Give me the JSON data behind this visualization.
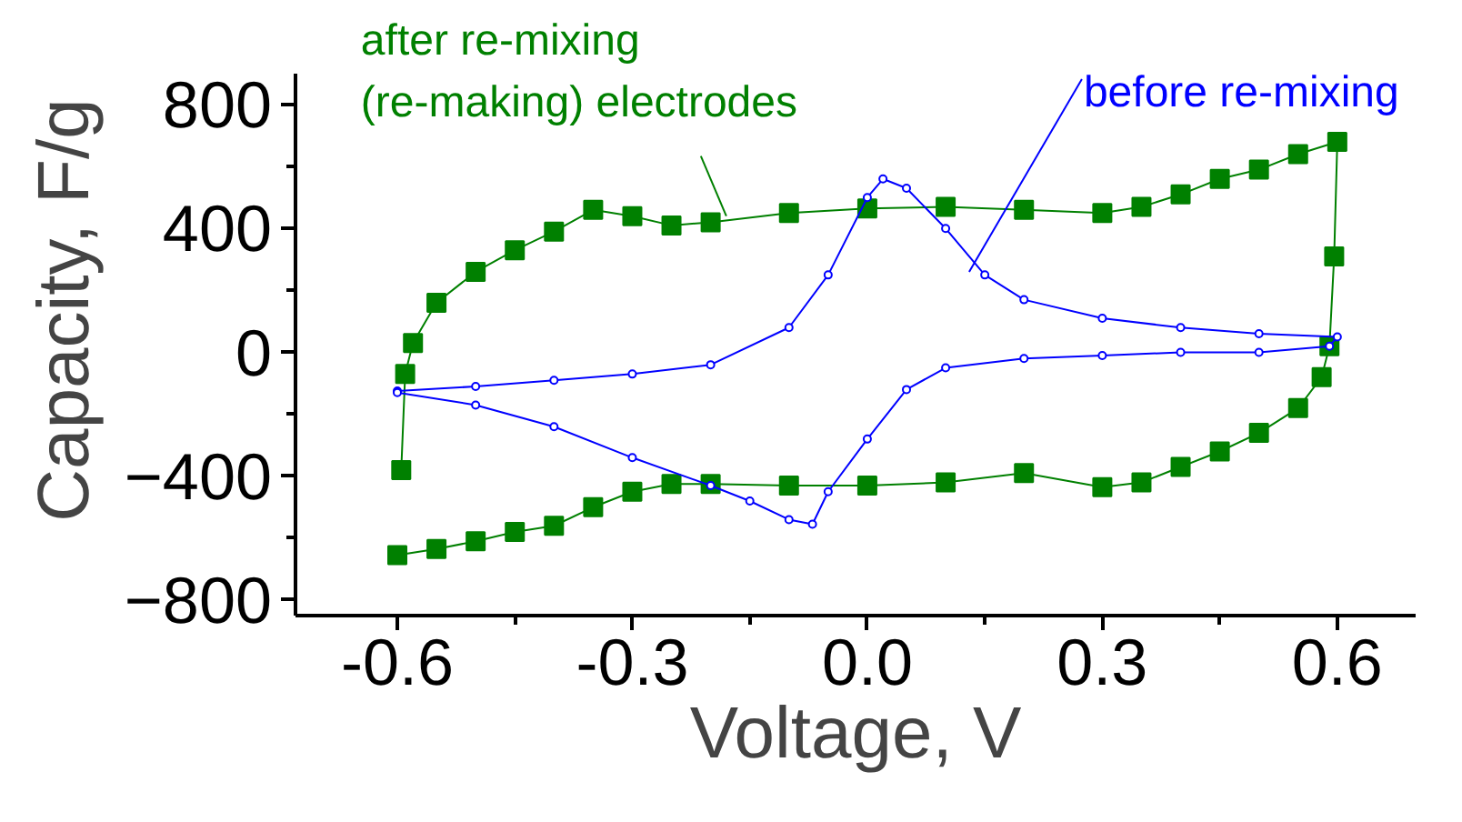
{
  "chart_data": {
    "type": "line",
    "xlabel": "Voltage, V",
    "ylabel": "Capacity, F/g",
    "xlim": [
      -0.73,
      0.7
    ],
    "ylim": [
      -850,
      900
    ],
    "xticks": [
      {
        "value": -0.6,
        "label": "-0.6"
      },
      {
        "value": -0.3,
        "label": "-0.3"
      },
      {
        "value": 0.0,
        "label": "0.0"
      },
      {
        "value": 0.3,
        "label": "0.3"
      },
      {
        "value": 0.6,
        "label": "0.6"
      }
    ],
    "yticks": [
      -800,
      -400,
      0,
      400,
      800
    ],
    "grid": false,
    "series": [
      {
        "color": "#008000",
        "marker": "square",
        "x": [
          -0.6,
          -0.55,
          -0.5,
          -0.45,
          -0.4,
          -0.35,
          -0.3,
          -0.25,
          -0.2,
          -0.1,
          0.0,
          0.1,
          0.2,
          0.3,
          0.35,
          0.4,
          0.45,
          0.5,
          0.55,
          0.58,
          0.59,
          0.596,
          0.6,
          0.55,
          0.5,
          0.45,
          0.4,
          0.35,
          0.3,
          0.2,
          0.1,
          0.0,
          -0.1,
          -0.2,
          -0.25,
          -0.3,
          -0.35,
          -0.4,
          -0.45,
          -0.5,
          -0.55,
          -0.58,
          -0.59,
          -0.595
        ],
        "values": [
          -655,
          -635,
          -610,
          -580,
          -560,
          -500,
          -450,
          -425,
          -425,
          -430,
          -430,
          -420,
          -390,
          -435,
          -420,
          -370,
          -320,
          -260,
          -180,
          -80,
          20,
          310,
          680,
          640,
          590,
          560,
          510,
          470,
          450,
          460,
          470,
          465,
          450,
          420,
          410,
          440,
          460,
          390,
          330,
          260,
          160,
          30,
          -70,
          -380
        ]
      },
      {
        "color": "#0000ff",
        "marker": "circle",
        "x": [
          -0.6,
          -0.5,
          -0.4,
          -0.3,
          -0.2,
          -0.1,
          -0.05,
          0.0,
          0.02,
          0.05,
          0.1,
          0.15,
          0.2,
          0.3,
          0.4,
          0.5,
          0.6,
          0.59,
          0.5,
          0.4,
          0.3,
          0.2,
          0.1,
          0.05,
          0.0,
          -0.05,
          -0.07,
          -0.1,
          -0.15,
          -0.2,
          -0.3,
          -0.4,
          -0.5,
          -0.6
        ],
        "values": [
          -125,
          -110,
          -90,
          -70,
          -40,
          80,
          250,
          500,
          560,
          530,
          400,
          250,
          170,
          110,
          80,
          60,
          50,
          20,
          0,
          0,
          -10,
          -20,
          -50,
          -120,
          -280,
          -450,
          -555,
          -540,
          -480,
          -430,
          -340,
          -240,
          -170,
          -130
        ]
      }
    ],
    "annotations": [
      {
        "text": "after re-mixing\n(re-making) electrodes",
        "x": -0.18,
        "y": 440
      },
      {
        "text": "before re-mixing",
        "x": 0.13,
        "y": 260
      }
    ]
  }
}
